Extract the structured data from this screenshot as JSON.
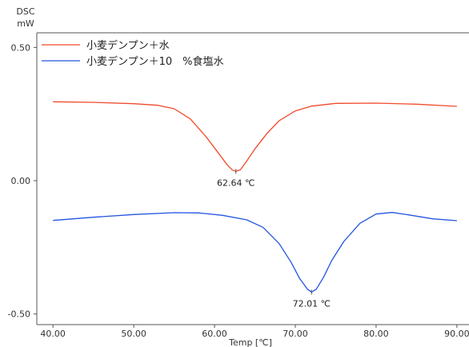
{
  "chart_data": {
    "type": "line",
    "ylabel": "DSC",
    "yunit": "mW",
    "xlabel": "Temp [℃]",
    "xlim": [
      38.0,
      91.5
    ],
    "ylim": [
      -0.54,
      0.555
    ],
    "x_ticks": [
      40,
      50,
      60,
      70,
      80,
      90
    ],
    "x_tick_labels": [
      "40.00",
      "50.00",
      "60.00",
      "70.00",
      "80.00",
      "90.00"
    ],
    "y_ticks": [
      0.5,
      0.0,
      -0.5
    ],
    "y_tick_labels": [
      "0.50",
      "0.00",
      "-0.50"
    ],
    "legend_position": "top-left",
    "series": [
      {
        "name": "小麦デンプン＋水",
        "color": "#f04a2a",
        "points": [
          [
            40,
            0.296
          ],
          [
            45,
            0.294
          ],
          [
            50,
            0.289
          ],
          [
            53,
            0.283
          ],
          [
            55,
            0.27
          ],
          [
            57,
            0.232
          ],
          [
            59,
            0.163
          ],
          [
            60.5,
            0.103
          ],
          [
            61.5,
            0.062
          ],
          [
            62.2,
            0.04
          ],
          [
            62.64,
            0.035
          ],
          [
            63.2,
            0.041
          ],
          [
            64,
            0.074
          ],
          [
            65,
            0.119
          ],
          [
            66.5,
            0.178
          ],
          [
            68,
            0.225
          ],
          [
            70,
            0.262
          ],
          [
            72,
            0.28
          ],
          [
            75,
            0.29
          ],
          [
            80,
            0.291
          ],
          [
            85,
            0.287
          ],
          [
            90,
            0.279
          ]
        ]
      },
      {
        "name": "小麦デンプン＋10　%食塩水",
        "color": "#2255e0",
        "points": [
          [
            40,
            -0.149
          ],
          [
            45,
            -0.137
          ],
          [
            50,
            -0.127
          ],
          [
            55,
            -0.12
          ],
          [
            58,
            -0.121
          ],
          [
            61,
            -0.13
          ],
          [
            64,
            -0.147
          ],
          [
            66,
            -0.175
          ],
          [
            68,
            -0.236
          ],
          [
            69.5,
            -0.307
          ],
          [
            70.5,
            -0.365
          ],
          [
            71.5,
            -0.407
          ],
          [
            72.01,
            -0.418
          ],
          [
            72.6,
            -0.407
          ],
          [
            73.5,
            -0.362
          ],
          [
            74.5,
            -0.3
          ],
          [
            76,
            -0.228
          ],
          [
            78,
            -0.16
          ],
          [
            80,
            -0.125
          ],
          [
            82,
            -0.119
          ],
          [
            84,
            -0.128
          ],
          [
            87,
            -0.143
          ],
          [
            90,
            -0.15
          ]
        ]
      }
    ],
    "annotations": [
      {
        "text": "62.64 ℃",
        "x": 62.64,
        "y": 0.035
      },
      {
        "text": "72.01 ℃",
        "x": 72.01,
        "y": -0.418
      }
    ]
  }
}
